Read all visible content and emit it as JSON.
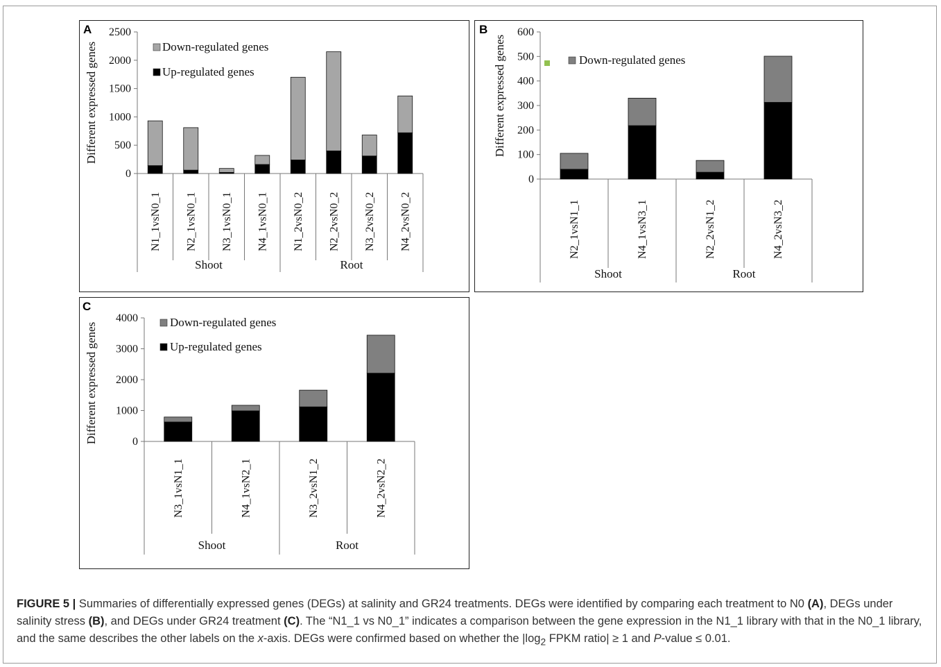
{
  "caption": {
    "label": "FIGURE 5 |",
    "t1": " Summaries of differentially expressed genes (DEGs) at salinity and GR24 treatments. DEGs were identified by comparing each treatment to N0 ",
    "r1": "(A)",
    "t2": ", DEGs under salinity stress ",
    "r2": "(B)",
    "t3": ", and DEGs under GR24 treatment ",
    "r3": "(C)",
    "t4": ". The “N1_1 vs N0_1” indicates a comparison between the gene expression in the N1_1 library with that in the N0_1 library, and the same describes the other labels on the ",
    "xaxis": "x",
    "t5": "-axis. DEGs were confirmed based on whether the |log",
    "sub": "2",
    "t6": " FPKM ratio|  ≥ 1 and ",
    "pvar": "P",
    "t7": "-value ≤ 0.01."
  },
  "chart_data": [
    {
      "panel": "A",
      "type": "bar",
      "stacked": true,
      "ylabel": "Different expressed genes",
      "ylim": [
        0,
        2500
      ],
      "yticks": [
        0,
        500,
        1000,
        1500,
        2000,
        2500
      ],
      "categories": [
        "N1_1vsN0_1",
        "N2_1vsN0_1",
        "N3_1vsN0_1",
        "N4_1vsN0_1",
        "N1_2vsN0_2",
        "N2_2vsN0_2",
        "N3_2vsN0_2",
        "N4_2vsN0_2"
      ],
      "groups": [
        {
          "label": "Shoot",
          "count": 4
        },
        {
          "label": "Root",
          "count": 4
        }
      ],
      "series": [
        {
          "name": "Up-regulated genes",
          "color": "#000000",
          "values": [
            140,
            60,
            20,
            160,
            240,
            400,
            310,
            720
          ]
        },
        {
          "name": "Down-regulated genes",
          "color": "#a6a6a6",
          "values": [
            790,
            750,
            70,
            160,
            1460,
            1750,
            370,
            650
          ]
        }
      ],
      "legend": [
        "Down-regulated genes",
        "Up-regulated genes"
      ],
      "legend_position": "top-left",
      "grid": false
    },
    {
      "panel": "B",
      "type": "bar",
      "stacked": true,
      "ylabel": "Different expressed genes",
      "ylim": [
        0,
        600
      ],
      "yticks": [
        0,
        100,
        200,
        300,
        400,
        500,
        600
      ],
      "categories": [
        "N2_1vsN1_1",
        "N4_1vsN3_1",
        "N2_2vsN1_2",
        "N4_2vsN3_2"
      ],
      "groups": [
        {
          "label": "Shoot",
          "count": 2
        },
        {
          "label": "Root",
          "count": 2
        }
      ],
      "series": [
        {
          "name": "",
          "color": "#000000",
          "values": [
            40,
            218,
            28,
            313
          ]
        },
        {
          "name": "Down-regulated genes",
          "color": "#808080",
          "values": [
            65,
            112,
            48,
            188
          ]
        }
      ],
      "legend": [
        "Down-regulated genes"
      ],
      "legend_marker_color": "#92c150",
      "legend_position": "top-left",
      "grid": false
    },
    {
      "panel": "C",
      "type": "bar",
      "stacked": true,
      "ylabel": "Different expressed genes",
      "ylim": [
        0,
        4000
      ],
      "yticks": [
        0,
        1000,
        2000,
        3000,
        4000
      ],
      "categories": [
        "N3_1vsN1_1",
        "N4_1vsN2_1",
        "N3_2vsN1_2",
        "N4_2vsN2_2"
      ],
      "groups": [
        {
          "label": "Shoot",
          "count": 2
        },
        {
          "label": "Root",
          "count": 2
        }
      ],
      "series": [
        {
          "name": "Up-regulated genes",
          "color": "#000000",
          "values": [
            630,
            990,
            1120,
            2210
          ]
        },
        {
          "name": "Down-regulated genes",
          "color": "#808080",
          "values": [
            160,
            180,
            540,
            1230
          ]
        }
      ],
      "legend": [
        "Down-regulated genes",
        "Up-regulated genes"
      ],
      "legend_position": "top-left",
      "grid": false
    }
  ]
}
